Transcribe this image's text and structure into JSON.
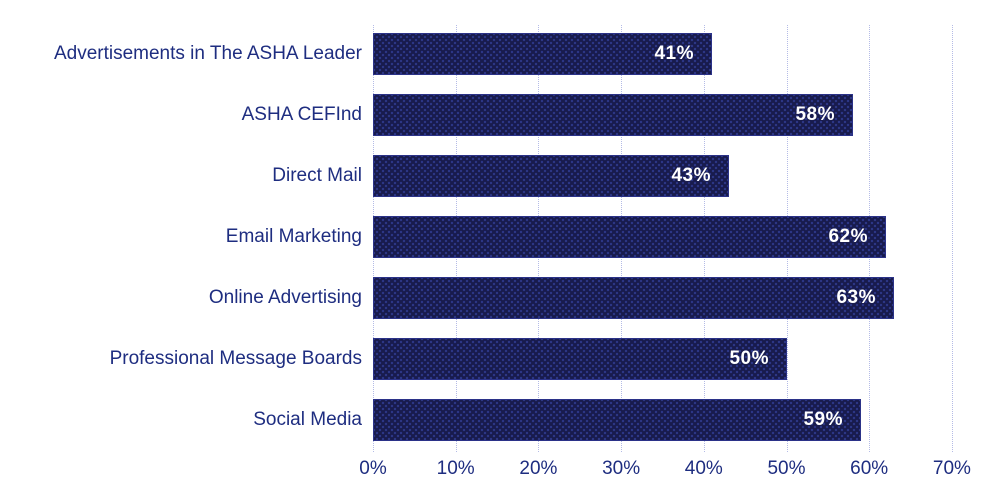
{
  "chart_data": {
    "type": "bar",
    "orientation": "horizontal",
    "title": "",
    "xlabel": "",
    "ylabel": "",
    "categories": [
      "Advertisements in The ASHA Leader",
      "ASHA CEFInd",
      "Direct Mail",
      "Email Marketing",
      "Online Advertising",
      "Professional Message Boards",
      "Social Media"
    ],
    "values": [
      41,
      58,
      43,
      62,
      63,
      50,
      59
    ],
    "value_labels": [
      "41%",
      "58%",
      "43%",
      "62%",
      "63%",
      "50%",
      "59%"
    ],
    "xlim": [
      0,
      70
    ],
    "x_tick_step": 10,
    "x_tick_labels": [
      "0%",
      "10%",
      "20%",
      "30%",
      "40%",
      "50%",
      "60%",
      "70%"
    ],
    "grid": true,
    "legend": false
  },
  "colors": {
    "bar_fill": "#181b4d",
    "bar_dot": "#2d3787",
    "bar_border": "#2b3288",
    "label_text": "#1e2d80",
    "gridline": "#b4bbe6",
    "value_text": "#ffffff",
    "background": "#ffffff"
  }
}
